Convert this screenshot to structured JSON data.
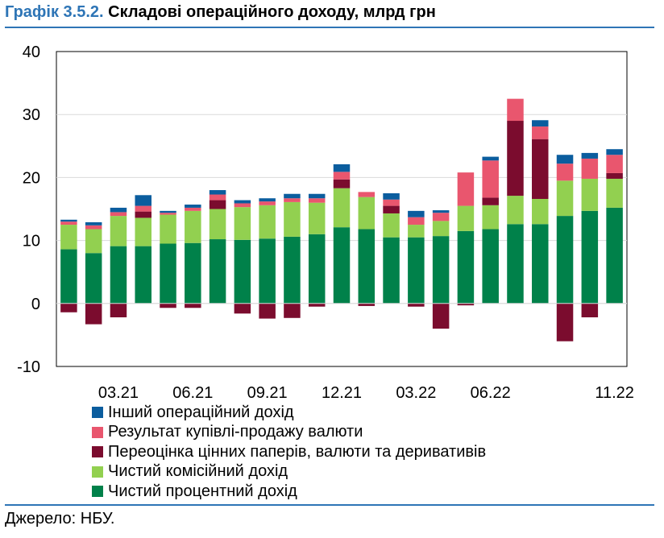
{
  "header": {
    "title_num": "Графік 3.5.2.",
    "title_text": "Складові операційного доходу, млрд грн"
  },
  "footer": {
    "source": "Джерело: НБУ."
  },
  "chart_data": {
    "type": "bar",
    "stacked": true,
    "title": "Складові операційного доходу, млрд грн",
    "ylim": [
      -10,
      40
    ],
    "yticks": [
      -10,
      0,
      10,
      20,
      30,
      40
    ],
    "ytick_labels": [
      "-10",
      "0",
      "10",
      "20",
      "30",
      "40"
    ],
    "grid": true,
    "legend_position": "bottom",
    "categories": [
      "01.21",
      "02.21",
      "03.21",
      "04.21",
      "05.21",
      "06.21",
      "07.21",
      "08.21",
      "09.21",
      "10.21",
      "11.21",
      "12.21",
      "01.22",
      "02.22",
      "03.22",
      "04.22",
      "05.22",
      "06.22",
      "07.22",
      "08.22",
      "09.22",
      "10.22",
      "11.22"
    ],
    "xtick_labels": [
      {
        "index": 2,
        "label": "03.21"
      },
      {
        "index": 5,
        "label": "06.21"
      },
      {
        "index": 8,
        "label": "09.21"
      },
      {
        "index": 11,
        "label": "12.21"
      },
      {
        "index": 14,
        "label": "03.22"
      },
      {
        "index": 17,
        "label": "06.22"
      },
      {
        "index": 22,
        "label": "11.22"
      }
    ],
    "series": [
      {
        "name": "Чистий процентний дохід",
        "color": "#00814a",
        "values": [
          8.6,
          8.0,
          9.1,
          9.1,
          9.5,
          9.6,
          10.2,
          10.1,
          10.3,
          10.6,
          11.0,
          12.1,
          11.8,
          10.5,
          10.5,
          10.7,
          11.5,
          11.8,
          12.6,
          12.6,
          13.9,
          14.7,
          15.2
        ]
      },
      {
        "name": "Чистий комісійний дохід",
        "color": "#92d050",
        "values": [
          3.9,
          3.8,
          4.8,
          4.5,
          4.6,
          5.1,
          4.8,
          5.2,
          5.3,
          5.5,
          5.0,
          6.2,
          5.1,
          3.8,
          2.0,
          2.4,
          4.0,
          3.8,
          4.5,
          4.0,
          5.6,
          5.1,
          4.6
        ]
      },
      {
        "name": "Переоцінка цінних паперів, валюти та деривативів",
        "color": "#7b0c2e",
        "values": [
          -1.4,
          -3.3,
          -2.2,
          1.0,
          -0.7,
          -0.7,
          1.4,
          -1.6,
          -2.4,
          -2.3,
          -0.5,
          1.4,
          -0.4,
          1.2,
          -0.5,
          -4.0,
          -0.3,
          1.2,
          11.9,
          9.5,
          -6.0,
          -2.2,
          0.9
        ]
      },
      {
        "name": "Результат купівлі-продажу валюти",
        "color": "#e9566e",
        "values": [
          0.5,
          0.6,
          0.6,
          0.9,
          0.3,
          0.5,
          0.9,
          0.6,
          0.6,
          0.6,
          0.7,
          1.2,
          0.8,
          1.0,
          1.2,
          1.3,
          5.3,
          5.9,
          3.5,
          2.0,
          2.7,
          3.2,
          2.9
        ]
      },
      {
        "name": "Інший операційний дохід",
        "color": "#0b5d9e",
        "values": [
          0.3,
          0.5,
          0.7,
          1.7,
          0.3,
          0.5,
          0.7,
          0.5,
          0.5,
          0.7,
          0.7,
          1.2,
          0.0,
          1.0,
          1.0,
          0.4,
          0.0,
          0.6,
          0.0,
          1.0,
          1.4,
          0.9,
          0.9
        ]
      }
    ]
  }
}
